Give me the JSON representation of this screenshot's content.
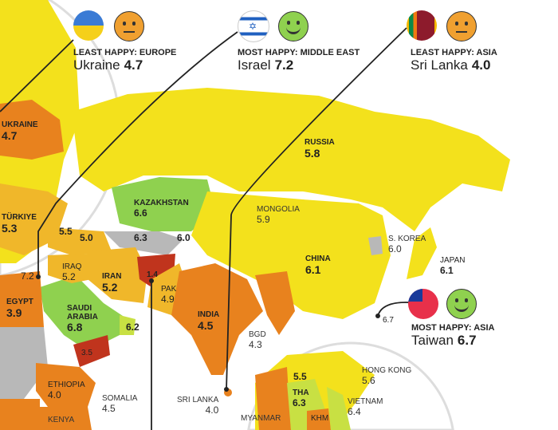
{
  "colors": {
    "very_high": "#8fd14f",
    "high": "#c8e043",
    "mid": "#f3e11c",
    "low": "#f0b72a",
    "lower": "#e8821e",
    "lowest": "#c0341d",
    "no_data": "#b8b8b8"
  },
  "callouts": [
    {
      "category": "LEAST HAPPY: EUROPE",
      "country": "Ukraine",
      "score": "4.7",
      "flag": "ukraine-flag",
      "face": "sad-face"
    },
    {
      "category": "MOST HAPPY: MIDDLE EAST",
      "country": "Israel",
      "score": "7.2",
      "flag": "israel-flag",
      "face": "smile-face"
    },
    {
      "category": "LEAST HAPPY: ASIA",
      "country": "Sri Lanka",
      "score": "4.0",
      "flag": "sri-lanka-flag",
      "face": "sad-face"
    },
    {
      "category": "MOST HAPPY: ASIA",
      "country": "Taiwan",
      "score": "6.7",
      "flag": "taiwan-flag",
      "face": "smile-face"
    }
  ],
  "labels": {
    "ukraine": {
      "name": "UKRAINE",
      "value": "4.7"
    },
    "turkiye": {
      "name": "TÜRKIYE",
      "value": "5.3"
    },
    "russia": {
      "name": "RUSSIA",
      "value": "5.8"
    },
    "kazakhstan": {
      "name": "KAZAKHSTAN",
      "value": "6.6"
    },
    "mongolia": {
      "name": "MONGOLIA",
      "value": "5.9"
    },
    "china": {
      "name": "CHINA",
      "value": "6.1"
    },
    "skorea": {
      "name": "S. KOREA",
      "value": "6.0"
    },
    "japan": {
      "name": "JAPAN",
      "value": "6.1"
    },
    "iraq": {
      "name": "IRAQ",
      "value": "5.2"
    },
    "iran": {
      "name": "IRAN",
      "value": "5.2"
    },
    "pak": {
      "name": "PAK",
      "value": "4.9"
    },
    "india": {
      "name": "INDIA",
      "value": "4.5"
    },
    "bgd": {
      "name": "BGD",
      "value": "4.3"
    },
    "egypt": {
      "name": "EGYPT",
      "value": "3.9"
    },
    "saudi": {
      "name": "SAUDI ARABIA",
      "value": "6.8"
    },
    "ethiopia": {
      "name": "ETHIOPIA",
      "value": "4.0"
    },
    "somalia": {
      "name": "SOMALIA",
      "value": "4.5"
    },
    "kenya": {
      "name": "KENYA",
      "value": ""
    },
    "srilanka": {
      "name": "SRI LANKA",
      "value": "4.0"
    },
    "myanmar": {
      "name": "MYANMAR",
      "value": ""
    },
    "hongkong": {
      "name": "HONG KONG",
      "value": "5.6"
    },
    "vietnam": {
      "name": "VIETNAM",
      "value": "6.4"
    },
    "tha": {
      "name": "THA",
      "value": "6.3"
    },
    "khm": {
      "name": "KHM",
      "value": ""
    },
    "laos": {
      "value": "5.5"
    },
    "georgia": {
      "value": "5.5"
    },
    "armenia": {
      "value": "5.0"
    },
    "uzbekistan": {
      "value": "6.3"
    },
    "kyrgyzstan": {
      "value": "6.0"
    },
    "israel": {
      "value": "7.2"
    },
    "afghanistan": {
      "value": "1.4"
    },
    "uae": {
      "value": "6.2"
    },
    "yemen": {
      "value": "3.5"
    },
    "taiwan": {
      "value": "6.7"
    }
  }
}
